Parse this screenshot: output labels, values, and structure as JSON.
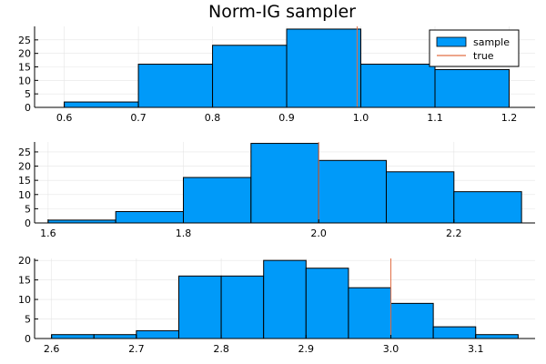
{
  "title": "Norm-IG sampler",
  "colors": {
    "bar": "#009AF9",
    "true_line": "#E26F46",
    "grid": "#E5E5E5",
    "axis": "#000000"
  },
  "legend": {
    "placement": "top-right",
    "entries": [
      "sample",
      "true"
    ]
  },
  "chart_data": [
    {
      "type": "bar",
      "title": "Norm-IG sampler",
      "bin_edges": [
        0.6,
        0.7,
        0.8,
        0.9,
        1.0,
        1.1,
        1.2
      ],
      "counts": [
        2,
        16,
        23,
        29,
        16,
        14
      ],
      "true_value": 0.995,
      "xlim": [
        0.56,
        1.235
      ],
      "ylim": [
        0,
        30
      ],
      "xticks": [
        0.6,
        0.7,
        0.8,
        0.9,
        1.0,
        1.1,
        1.2
      ],
      "xtick_labels": [
        "0.6",
        "0.7",
        "0.8",
        "0.9",
        "1.0",
        "1.1",
        "1.2"
      ],
      "yticks": [
        0,
        5,
        10,
        15,
        20,
        25
      ],
      "ytick_labels": [
        "0",
        "5",
        "10",
        "15",
        "20",
        "25"
      ],
      "grid": true,
      "legend": true
    },
    {
      "type": "bar",
      "bin_edges": [
        1.6,
        1.7,
        1.8,
        1.9,
        2.0,
        2.1,
        2.2,
        2.3
      ],
      "counts": [
        1,
        4,
        16,
        28,
        22,
        18,
        11
      ],
      "true_value": 2.0,
      "xlim": [
        1.58,
        2.32
      ],
      "ylim": [
        0,
        28.5
      ],
      "xticks": [
        1.6,
        1.8,
        2.0,
        2.2
      ],
      "xtick_labels": [
        "1.6",
        "1.8",
        "2.0",
        "2.2"
      ],
      "yticks": [
        0,
        5,
        10,
        15,
        20,
        25
      ],
      "ytick_labels": [
        "0",
        "5",
        "10",
        "15",
        "20",
        "25"
      ],
      "grid": true,
      "legend": false
    },
    {
      "type": "bar",
      "bin_edges": [
        2.6,
        2.65,
        2.7,
        2.75,
        2.8,
        2.85,
        2.9,
        2.95,
        3.0,
        3.05,
        3.1,
        3.15
      ],
      "counts": [
        1,
        1,
        2,
        16,
        16,
        20,
        18,
        13,
        9,
        3,
        1
      ],
      "true_value": 3.0,
      "xlim": [
        2.58,
        3.17
      ],
      "ylim": [
        0,
        20.5
      ],
      "xticks": [
        2.6,
        2.7,
        2.8,
        2.9,
        3.0,
        3.1
      ],
      "xtick_labels": [
        "2.6",
        "2.7",
        "2.8",
        "2.9",
        "3.0",
        "3.1"
      ],
      "yticks": [
        0,
        5,
        10,
        15,
        20
      ],
      "ytick_labels": [
        "0",
        "5",
        "10",
        "15",
        "20"
      ],
      "grid": true,
      "legend": false
    }
  ]
}
